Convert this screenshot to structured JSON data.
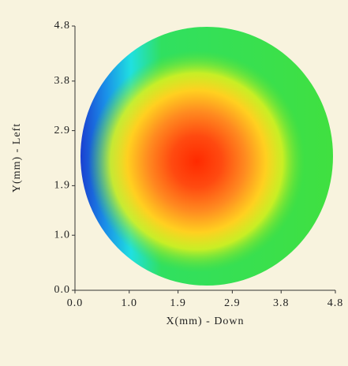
{
  "chart_data": {
    "type": "heatmap",
    "xlabel": "X(mm) - Down",
    "ylabel": "Y(mm) - Left",
    "xlim": [
      0.0,
      4.8
    ],
    "ylim": [
      0.0,
      4.8
    ],
    "xticks": [
      {
        "value": 0.0,
        "label": "0.0"
      },
      {
        "value": 1.0,
        "label": "1.0"
      },
      {
        "value": 1.9,
        "label": "1.9"
      },
      {
        "value": 2.9,
        "label": "2.9"
      },
      {
        "value": 3.8,
        "label": "3.8"
      },
      {
        "value": 4.8,
        "label": "4.8"
      }
    ],
    "yticks": [
      {
        "value": 0.0,
        "label": "0.0"
      },
      {
        "value": 1.0,
        "label": "1.0"
      },
      {
        "value": 1.9,
        "label": "1.9"
      },
      {
        "value": 2.9,
        "label": "2.9"
      },
      {
        "value": 3.8,
        "label": "3.8"
      },
      {
        "value": 4.8,
        "label": "4.8"
      }
    ]
  }
}
